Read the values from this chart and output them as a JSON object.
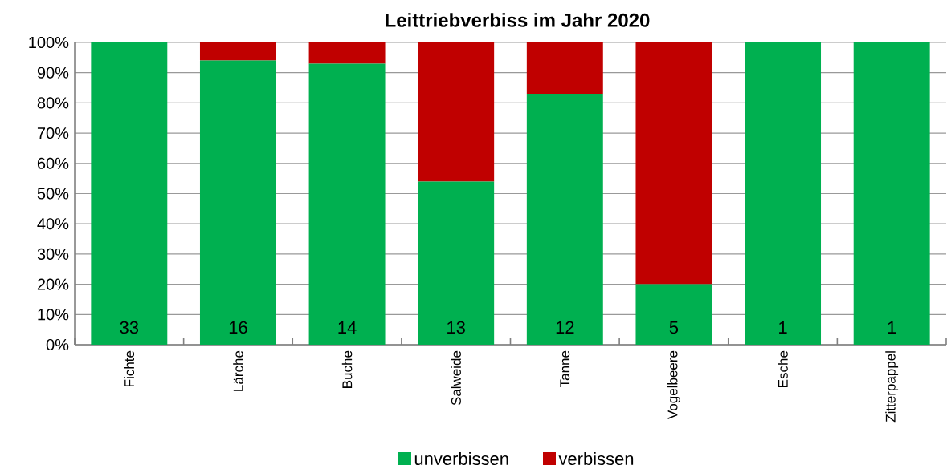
{
  "chart_data": {
    "type": "bar",
    "title": "Leittriebverbiss im Jahr 2020",
    "stacked": true,
    "categories": [
      "Fichte",
      "Lärche",
      "Buche",
      "Salweide",
      "Tanne",
      "Vogelbeere",
      "Esche",
      "Zitterpappel"
    ],
    "series": [
      {
        "name": "unverbissen",
        "color": "#00b050",
        "values": [
          100,
          94,
          93,
          54,
          83,
          20,
          100,
          100
        ]
      },
      {
        "name": "verbissen",
        "color": "#c00000",
        "values": [
          0,
          6,
          7,
          46,
          17,
          80,
          0,
          0
        ]
      }
    ],
    "ylim": [
      0,
      100
    ],
    "yticks": [
      {
        "value": 0,
        "label": "0%"
      },
      {
        "value": 10,
        "label": "10%"
      },
      {
        "value": 20,
        "label": "20%"
      },
      {
        "value": 30,
        "label": "30%"
      },
      {
        "value": 40,
        "label": "40%"
      },
      {
        "value": 50,
        "label": "50%"
      },
      {
        "value": 60,
        "label": "60%"
      },
      {
        "value": 70,
        "label": "70%"
      },
      {
        "value": 80,
        "label": "80%"
      },
      {
        "value": 90,
        "label": "90%"
      },
      {
        "value": 100,
        "label": "100%"
      }
    ],
    "grid": "y",
    "legend": "bottom",
    "annotations": [
      "33",
      "16",
      "14",
      "13",
      "12",
      "5",
      "1",
      "1"
    ]
  }
}
